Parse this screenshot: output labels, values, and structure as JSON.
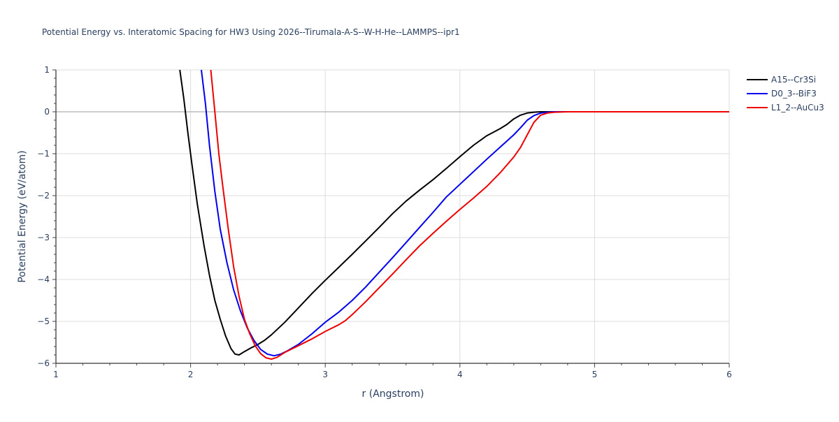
{
  "chart_data": {
    "type": "line",
    "title": "Potential Energy vs. Interatomic Spacing for HW3 Using 2026--Tirumala-A-S--W-H-He--LAMMPS--ipr1",
    "xlabel": "r (Angstrom)",
    "ylabel": "Potential Energy (eV/atom)",
    "xlim": [
      1,
      6
    ],
    "ylim": [
      -6,
      1
    ],
    "xticks": [
      1,
      2,
      3,
      4,
      5,
      6
    ],
    "yticks": [
      1,
      0,
      -1,
      -2,
      -3,
      -4,
      -5,
      -6
    ],
    "ytick_labels": [
      "1",
      "0",
      "−1",
      "−2",
      "−3",
      "−4",
      "−5",
      "−6"
    ],
    "grid": true,
    "legend_position": "top-right",
    "series": [
      {
        "name": "A15--Cr3Si",
        "color": "#000000",
        "points": [
          [
            1.92,
            1.0
          ],
          [
            1.95,
            0.3
          ],
          [
            1.98,
            -0.5
          ],
          [
            2.01,
            -1.25
          ],
          [
            2.05,
            -2.2
          ],
          [
            2.1,
            -3.2
          ],
          [
            2.14,
            -3.9
          ],
          [
            2.18,
            -4.5
          ],
          [
            2.22,
            -4.95
          ],
          [
            2.26,
            -5.35
          ],
          [
            2.3,
            -5.65
          ],
          [
            2.33,
            -5.78
          ],
          [
            2.36,
            -5.8
          ],
          [
            2.4,
            -5.72
          ],
          [
            2.45,
            -5.63
          ],
          [
            2.5,
            -5.55
          ],
          [
            2.55,
            -5.45
          ],
          [
            2.6,
            -5.32
          ],
          [
            2.7,
            -5.02
          ],
          [
            2.8,
            -4.68
          ],
          [
            2.9,
            -4.34
          ],
          [
            3.0,
            -4.02
          ],
          [
            3.1,
            -3.71
          ],
          [
            3.2,
            -3.4
          ],
          [
            3.3,
            -3.08
          ],
          [
            3.4,
            -2.76
          ],
          [
            3.5,
            -2.43
          ],
          [
            3.6,
            -2.13
          ],
          [
            3.7,
            -1.87
          ],
          [
            3.8,
            -1.62
          ],
          [
            3.9,
            -1.35
          ],
          [
            4.0,
            -1.07
          ],
          [
            4.1,
            -0.8
          ],
          [
            4.2,
            -0.57
          ],
          [
            4.3,
            -0.4
          ],
          [
            4.35,
            -0.3
          ],
          [
            4.4,
            -0.17
          ],
          [
            4.45,
            -0.08
          ],
          [
            4.5,
            -0.03
          ],
          [
            4.55,
            -0.01
          ],
          [
            4.6,
            0.0
          ],
          [
            4.8,
            0.0
          ],
          [
            5.0,
            0.0
          ],
          [
            5.5,
            0.0
          ],
          [
            6.0,
            0.0
          ]
        ]
      },
      {
        "name": "D0_3--BiF3",
        "color": "#0000ee",
        "points": [
          [
            2.08,
            1.0
          ],
          [
            2.11,
            0.2
          ],
          [
            2.14,
            -0.8
          ],
          [
            2.18,
            -1.9
          ],
          [
            2.22,
            -2.8
          ],
          [
            2.27,
            -3.6
          ],
          [
            2.32,
            -4.25
          ],
          [
            2.37,
            -4.75
          ],
          [
            2.42,
            -5.15
          ],
          [
            2.47,
            -5.45
          ],
          [
            2.52,
            -5.67
          ],
          [
            2.57,
            -5.78
          ],
          [
            2.62,
            -5.82
          ],
          [
            2.67,
            -5.78
          ],
          [
            2.72,
            -5.7
          ],
          [
            2.8,
            -5.55
          ],
          [
            2.9,
            -5.3
          ],
          [
            3.0,
            -5.02
          ],
          [
            3.1,
            -4.78
          ],
          [
            3.2,
            -4.5
          ],
          [
            3.3,
            -4.18
          ],
          [
            3.4,
            -3.83
          ],
          [
            3.5,
            -3.48
          ],
          [
            3.6,
            -3.12
          ],
          [
            3.7,
            -2.76
          ],
          [
            3.8,
            -2.4
          ],
          [
            3.9,
            -2.03
          ],
          [
            4.0,
            -1.73
          ],
          [
            4.1,
            -1.43
          ],
          [
            4.2,
            -1.13
          ],
          [
            4.3,
            -0.84
          ],
          [
            4.4,
            -0.55
          ],
          [
            4.45,
            -0.38
          ],
          [
            4.5,
            -0.2
          ],
          [
            4.55,
            -0.09
          ],
          [
            4.6,
            -0.03
          ],
          [
            4.65,
            -0.01
          ],
          [
            4.7,
            0.0
          ],
          [
            5.0,
            0.0
          ],
          [
            5.5,
            0.0
          ],
          [
            6.0,
            0.0
          ]
        ]
      },
      {
        "name": "L1_2--AuCu3",
        "color": "#ee0000",
        "points": [
          [
            2.15,
            1.0
          ],
          [
            2.18,
            0.0
          ],
          [
            2.21,
            -1.0
          ],
          [
            2.24,
            -1.8
          ],
          [
            2.28,
            -2.8
          ],
          [
            2.32,
            -3.7
          ],
          [
            2.36,
            -4.4
          ],
          [
            2.4,
            -4.95
          ],
          [
            2.44,
            -5.3
          ],
          [
            2.48,
            -5.58
          ],
          [
            2.52,
            -5.77
          ],
          [
            2.56,
            -5.87
          ],
          [
            2.6,
            -5.9
          ],
          [
            2.64,
            -5.86
          ],
          [
            2.7,
            -5.74
          ],
          [
            2.8,
            -5.58
          ],
          [
            2.9,
            -5.42
          ],
          [
            3.0,
            -5.24
          ],
          [
            3.1,
            -5.08
          ],
          [
            3.15,
            -4.98
          ],
          [
            3.2,
            -4.84
          ],
          [
            3.3,
            -4.53
          ],
          [
            3.4,
            -4.2
          ],
          [
            3.5,
            -3.87
          ],
          [
            3.6,
            -3.53
          ],
          [
            3.7,
            -3.2
          ],
          [
            3.8,
            -2.9
          ],
          [
            3.9,
            -2.61
          ],
          [
            4.0,
            -2.33
          ],
          [
            4.1,
            -2.06
          ],
          [
            4.2,
            -1.78
          ],
          [
            4.3,
            -1.45
          ],
          [
            4.4,
            -1.08
          ],
          [
            4.45,
            -0.85
          ],
          [
            4.5,
            -0.55
          ],
          [
            4.55,
            -0.25
          ],
          [
            4.6,
            -0.08
          ],
          [
            4.65,
            -0.03
          ],
          [
            4.7,
            -0.01
          ],
          [
            4.8,
            0.0
          ],
          [
            5.0,
            0.0
          ],
          [
            5.5,
            0.0
          ],
          [
            6.0,
            0.0
          ]
        ]
      }
    ]
  }
}
